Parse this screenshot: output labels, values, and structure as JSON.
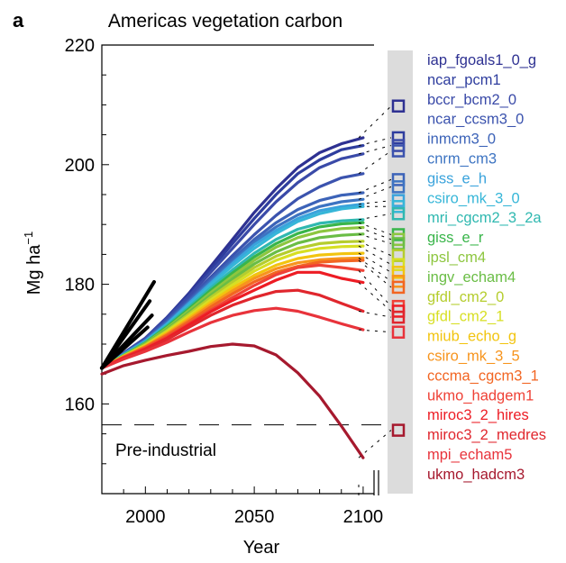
{
  "panel_label": "a",
  "chart_data": {
    "type": "line",
    "title": "Americas vegetation carbon",
    "xlabel": "Year",
    "ylabel": "Mg ha",
    "ylabel_sup": "−1",
    "xlim": [
      1980,
      2105
    ],
    "ylim": [
      145,
      220
    ],
    "x_ticks": [
      2000,
      2050,
      2100
    ],
    "y_ticks": [
      160,
      180,
      200,
      220
    ],
    "grid": false,
    "reference_line": {
      "label": "Pre-industrial",
      "y": 156.5
    },
    "x": [
      1980,
      1990,
      2000,
      2010,
      2020,
      2030,
      2040,
      2050,
      2060,
      2070,
      2080,
      2090,
      2100
    ],
    "series": [
      {
        "name": "iap_fgoals1_0_g",
        "color": "#2e3192",
        "values": [
          166,
          168.5,
          171,
          174.5,
          178.5,
          183,
          187.5,
          192,
          196,
          199.5,
          202,
          203.5,
          204.5
        ],
        "end_marker": 209.8
      },
      {
        "name": "ncar_pcm1",
        "color": "#2e3d9e",
        "values": [
          166,
          168.5,
          171,
          174.5,
          178.3,
          182.5,
          186.8,
          191,
          195,
          198.5,
          200.8,
          202.5,
          203.2
        ],
        "end_marker": 204.5
      },
      {
        "name": "bccr_bcm2_0",
        "color": "#3a4aa8",
        "values": [
          166,
          168.5,
          171,
          174.3,
          178,
          182,
          186,
          190,
          193.8,
          197,
          199.5,
          201,
          201.8
        ],
        "end_marker": 203.2
      },
      {
        "name": "ncar_ccsm3_0",
        "color": "#3b53ae",
        "values": [
          166,
          168.4,
          170.8,
          174,
          177.5,
          181.2,
          184.8,
          188.3,
          191.5,
          194.3,
          196.3,
          197.8,
          198.5
        ],
        "end_marker": 202.3
      },
      {
        "name": "inmcm3_0",
        "color": "#3c63b8",
        "values": [
          166,
          168.4,
          170.7,
          173.8,
          177.2,
          180.8,
          184.2,
          187.5,
          190.3,
          192.5,
          194,
          194.9,
          195.3
        ],
        "end_marker": 197.5
      },
      {
        "name": "cnrm_cm3",
        "color": "#3d74c2",
        "values": [
          166,
          168.3,
          170.6,
          173.6,
          177,
          180.5,
          183.8,
          187,
          189.6,
          191.6,
          193,
          193.8,
          194.2
        ],
        "end_marker": 196.3
      },
      {
        "name": "giss_e_h",
        "color": "#3aa3dc",
        "values": [
          166,
          168.3,
          170.5,
          173.4,
          176.8,
          180.2,
          183.5,
          186.6,
          189,
          191,
          192.3,
          193,
          193.4
        ],
        "end_marker": 194
      },
      {
        "name": "csiro_mk_3_0",
        "color": "#36b6d8",
        "values": [
          166,
          168.2,
          170.4,
          173.3,
          176.5,
          179.9,
          183.1,
          186,
          188.5,
          190.5,
          191.8,
          192.6,
          193
        ],
        "end_marker": 193
      },
      {
        "name": "mri_cgcm2_3_2a",
        "color": "#2fb8b0",
        "values": [
          166,
          168.2,
          170.3,
          173.1,
          176.2,
          179.4,
          182.4,
          185.2,
          187.5,
          189.2,
          190.2,
          190.6,
          190.8
        ],
        "end_marker": 191.8
      },
      {
        "name": "giss_e_r",
        "color": "#39b54a",
        "values": [
          166,
          168.1,
          170.2,
          172.9,
          175.9,
          179,
          181.9,
          184.6,
          186.8,
          188.5,
          189.6,
          190.1,
          190.3
        ],
        "end_marker": 188.3
      },
      {
        "name": "ipsl_cm4",
        "color": "#8dc63f",
        "values": [
          166,
          168.1,
          170.1,
          172.7,
          175.6,
          178.6,
          181.4,
          184,
          186.2,
          187.8,
          188.8,
          189.3,
          189.5
        ],
        "end_marker": 187.5
      },
      {
        "name": "ingv_echam4",
        "color": "#6abd45",
        "values": [
          166,
          168.1,
          170,
          172.5,
          175.3,
          178.2,
          180.9,
          183.4,
          185.4,
          186.9,
          187.8,
          188.2,
          188.4
        ],
        "end_marker": 186.8
      },
      {
        "name": "gfdl_cm2_0",
        "color": "#b5cd2e",
        "values": [
          166,
          168,
          169.9,
          172.3,
          175,
          177.8,
          180.4,
          182.8,
          184.7,
          186,
          186.8,
          187.1,
          187.2
        ],
        "end_marker": 184.8
      },
      {
        "name": "gfdl_cm2_1",
        "color": "#d7df23",
        "values": [
          166,
          168,
          169.8,
          172.1,
          174.7,
          177.4,
          179.9,
          182.2,
          184,
          185.3,
          186,
          186.3,
          186.4
        ],
        "end_marker": 183.3
      },
      {
        "name": "miub_echo_g",
        "color": "#f2c40f",
        "values": [
          166,
          167.9,
          169.7,
          171.9,
          174.4,
          177,
          179.4,
          181.5,
          183.2,
          184.3,
          184.9,
          185.1,
          185.2
        ],
        "end_marker": 182
      },
      {
        "name": "csiro_mk_3_5",
        "color": "#f7941d",
        "values": [
          166,
          167.9,
          169.6,
          171.7,
          174.1,
          176.6,
          178.9,
          181,
          182.6,
          183.6,
          184.1,
          184.3,
          184.4
        ],
        "end_marker": 180.5
      },
      {
        "name": "cccma_cgcm3_1",
        "color": "#f26522",
        "values": [
          166,
          167.8,
          169.5,
          171.5,
          173.8,
          176.2,
          178.4,
          180.4,
          182,
          183,
          183.7,
          183.9,
          184
        ],
        "end_marker": 179.5
      },
      {
        "name": "ukmo_hadgem1",
        "color": "#ef4136",
        "values": [
          166,
          167.8,
          169.3,
          171.2,
          173.4,
          175.7,
          177.8,
          179.8,
          181.6,
          182.8,
          183.2,
          182.8,
          182.3
        ],
        "end_marker": 176.3
      },
      {
        "name": "miroc3_2_hires",
        "color": "#ed1c24",
        "values": [
          166,
          167.7,
          169.2,
          171,
          173.2,
          175.4,
          177.3,
          179,
          180.7,
          182,
          182,
          181,
          180.3
        ],
        "end_marker": 175.5
      },
      {
        "name": "miroc3_2_medres",
        "color": "#e0262d",
        "values": [
          166,
          167.6,
          169,
          170.8,
          172.8,
          174.8,
          176.5,
          177.8,
          178.8,
          179,
          178.2,
          176.8,
          175.5
        ],
        "end_marker": 174.5
      },
      {
        "name": "mpi_echam5",
        "color": "#e8333b",
        "values": [
          166,
          167.5,
          168.8,
          170.3,
          172,
          173.6,
          174.8,
          175.6,
          176,
          175.5,
          174.5,
          173.4,
          172.4
        ],
        "end_marker": 172
      },
      {
        "name": "ukmo_hadcm3",
        "color": "#a6192e",
        "values": [
          165,
          166.4,
          167.3,
          168.1,
          168.8,
          169.6,
          170,
          169.7,
          168.2,
          165.2,
          161.3,
          156.3,
          151
        ],
        "end_marker": 155.6
      }
    ],
    "observed_lines": [
      {
        "x": [
          1980,
          2004
        ],
        "y": [
          166,
          180.4
        ]
      },
      {
        "x": [
          1980,
          2002
        ],
        "y": [
          166,
          177.2
        ]
      },
      {
        "x": [
          1980,
          2003
        ],
        "y": [
          166,
          174.8
        ]
      },
      {
        "x": [
          1980,
          2001
        ],
        "y": [
          166,
          172.8
        ]
      }
    ]
  }
}
